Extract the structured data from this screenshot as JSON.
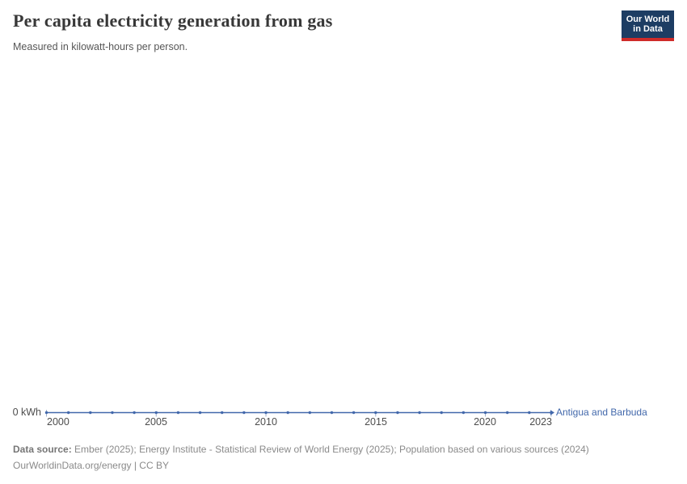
{
  "header": {
    "title": "Per capita electricity generation from gas",
    "subtitle": "Measured in kilowatt-hours per person.",
    "logo": {
      "line1": "Our World",
      "line2": "in Data"
    }
  },
  "chart_data": {
    "type": "line",
    "title": "Per capita electricity generation from gas",
    "ylabel": "kilowatt-hours per person",
    "x": [
      2000,
      2001,
      2002,
      2003,
      2004,
      2005,
      2006,
      2007,
      2008,
      2009,
      2010,
      2011,
      2012,
      2013,
      2014,
      2015,
      2016,
      2017,
      2018,
      2019,
      2020,
      2021,
      2022,
      2023
    ],
    "series": [
      {
        "name": "Antigua and Barbuda",
        "color": "#4268ab",
        "values": [
          0,
          0,
          0,
          0,
          0,
          0,
          0,
          0,
          0,
          0,
          0,
          0,
          0,
          0,
          0,
          0,
          0,
          0,
          0,
          0,
          0,
          0,
          0,
          0
        ]
      }
    ],
    "x_ticks": [
      "2000",
      "2005",
      "2010",
      "2015",
      "2020",
      "2023"
    ],
    "y_tick_label": "0 kWh",
    "xlim": [
      2000,
      2023
    ],
    "ylim": [
      0,
      0
    ],
    "grid": false,
    "legend_position": "right-of-line-end"
  },
  "footer": {
    "datasource_label": "Data source:",
    "datasource_text": " Ember (2025); Energy Institute - Statistical Review of World Energy (2025); Population based on various sources (2024)",
    "license_line": "OurWorldinData.org/energy | CC BY"
  },
  "colors": {
    "line": "#4268ab",
    "axis_tick": "#a3b1cb",
    "logo_bg": "#1d3d63",
    "logo_stripe": "#cf2b29"
  }
}
